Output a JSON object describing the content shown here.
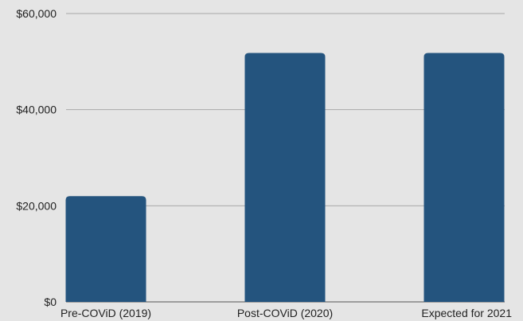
{
  "chart_data": {
    "type": "bar",
    "title": "",
    "xlabel": "",
    "ylabel": "",
    "categories": [
      "Pre-COViD (2019)",
      "Post-COViD (2020)",
      "Expected for 2021"
    ],
    "values": [
      22000,
      51800,
      51800
    ],
    "ylim": [
      0,
      60000
    ],
    "yticks": [
      0,
      20000,
      40000,
      60000
    ],
    "ytick_labels": [
      "$0",
      "$20,000",
      "$40,000",
      "$60,000"
    ],
    "grid": true,
    "legend": "none",
    "bar_color": "#24547e",
    "grid_color": "#a8a8a8",
    "background": "#e5e5e5"
  }
}
